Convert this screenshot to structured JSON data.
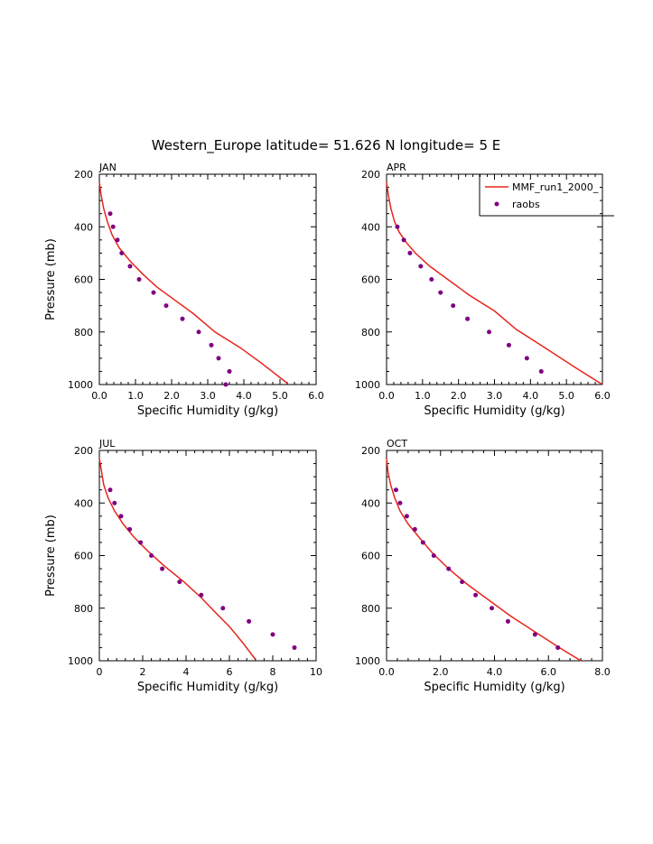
{
  "figure_title": "Western_Europe  latitude= 51.626 N longitude= 5 E",
  "legend": {
    "model_label": "MMF_run1_2000_",
    "obs_label": "raobs"
  },
  "colors": {
    "model": "#e8241c",
    "obs": "#800080",
    "axis": "#000000"
  },
  "chart_data": [
    {
      "type": "line",
      "panel_label": "JAN",
      "xlabel": "Specific Humidity (g/kg)",
      "ylabel": "Pressure (mb)",
      "xlim": [
        0,
        6
      ],
      "ylim": [
        1000,
        200
      ],
      "xticks": [
        "0.0",
        "1.0",
        "2.0",
        "3.0",
        "4.0",
        "5.0",
        "6.0"
      ],
      "yticks": [
        "200",
        "400",
        "600",
        "800",
        "1000"
      ],
      "series": [
        {
          "name": "MMF_run1_2000_",
          "style": "line",
          "x": [
            0.0,
            0.05,
            0.12,
            0.22,
            0.35,
            0.55,
            0.85,
            1.2,
            1.6,
            2.1,
            2.6,
            3.2,
            3.9,
            4.5,
            5.2
          ],
          "y": [
            230,
            280,
            330,
            380,
            430,
            480,
            530,
            580,
            630,
            680,
            730,
            800,
            860,
            920,
            995
          ]
        },
        {
          "name": "raobs",
          "style": "points",
          "x": [
            0.3,
            0.38,
            0.5,
            0.62,
            0.85,
            1.1,
            1.5,
            1.85,
            2.3,
            2.75,
            3.1,
            3.3,
            3.6,
            3.5
          ],
          "y": [
            350,
            400,
            450,
            500,
            550,
            600,
            650,
            700,
            750,
            800,
            850,
            900,
            950,
            1000
          ]
        }
      ]
    },
    {
      "type": "line",
      "panel_label": "APR",
      "xlabel": "Specific Humidity (g/kg)",
      "ylabel": "",
      "xlim": [
        0,
        6
      ],
      "ylim": [
        1000,
        200
      ],
      "xticks": [
        "0.0",
        "1.0",
        "2.0",
        "3.0",
        "4.0",
        "5.0",
        "6.0"
      ],
      "yticks": [
        "200",
        "400",
        "600",
        "800",
        "1000"
      ],
      "show_legend": true,
      "series": [
        {
          "name": "MMF_run1_2000_",
          "style": "line",
          "x": [
            0.0,
            0.05,
            0.12,
            0.22,
            0.35,
            0.55,
            0.8,
            1.2,
            1.7,
            2.3,
            3.0,
            3.6,
            4.4,
            5.3,
            6.0
          ],
          "y": [
            230,
            280,
            330,
            380,
            420,
            460,
            500,
            550,
            600,
            660,
            720,
            790,
            860,
            940,
            1000
          ]
        },
        {
          "name": "raobs",
          "style": "points",
          "x": [
            0.3,
            0.48,
            0.65,
            0.95,
            1.25,
            1.5,
            1.85,
            2.25,
            2.85,
            3.4,
            3.9,
            4.3
          ],
          "y": [
            400,
            450,
            500,
            550,
            600,
            650,
            700,
            750,
            800,
            850,
            900,
            950
          ]
        }
      ]
    },
    {
      "type": "line",
      "panel_label": "JUL",
      "xlabel": "Specific Humidity (g/kg)",
      "ylabel": "Pressure (mb)",
      "xlim": [
        0,
        10
      ],
      "ylim": [
        1000,
        200
      ],
      "xticks": [
        "0",
        "2",
        "4",
        "6",
        "8",
        "10"
      ],
      "yticks": [
        "200",
        "400",
        "600",
        "800",
        "1000"
      ],
      "series": [
        {
          "name": "MMF_run1_2000_",
          "style": "line",
          "x": [
            0.0,
            0.1,
            0.2,
            0.4,
            0.7,
            1.1,
            1.6,
            2.2,
            3.0,
            3.9,
            4.7,
            5.4,
            6.0,
            6.6,
            7.2
          ],
          "y": [
            230,
            280,
            330,
            380,
            430,
            480,
            530,
            580,
            640,
            700,
            760,
            820,
            870,
            930,
            995
          ]
        },
        {
          "name": "raobs",
          "style": "points",
          "x": [
            0.5,
            0.7,
            1.0,
            1.4,
            1.9,
            2.4,
            2.9,
            3.7,
            4.7,
            5.7,
            6.9,
            8.0,
            9.0
          ],
          "y": [
            350,
            400,
            450,
            500,
            550,
            600,
            650,
            700,
            750,
            800,
            850,
            900,
            950
          ]
        }
      ]
    },
    {
      "type": "line",
      "panel_label": "OCT",
      "xlabel": "Specific Humidity (g/kg)",
      "ylabel": "",
      "xlim": [
        0,
        8
      ],
      "ylim": [
        1000,
        200
      ],
      "xticks": [
        "0.0",
        "2.0",
        "4.0",
        "6.0",
        "8.0"
      ],
      "yticks": [
        "200",
        "400",
        "600",
        "800",
        "1000"
      ],
      "series": [
        {
          "name": "MMF_run1_2000_",
          "style": "line",
          "x": [
            0.0,
            0.05,
            0.15,
            0.3,
            0.5,
            0.8,
            1.2,
            1.7,
            2.3,
            3.0,
            3.8,
            4.6,
            5.5,
            6.4,
            7.2
          ],
          "y": [
            230,
            280,
            330,
            380,
            430,
            480,
            530,
            590,
            650,
            710,
            770,
            830,
            890,
            950,
            1000
          ]
        },
        {
          "name": "raobs",
          "style": "points",
          "x": [
            0.35,
            0.5,
            0.75,
            1.05,
            1.35,
            1.75,
            2.3,
            2.8,
            3.3,
            3.9,
            4.5,
            5.5,
            6.35
          ],
          "y": [
            350,
            400,
            450,
            500,
            550,
            600,
            650,
            700,
            750,
            800,
            850,
            900,
            950
          ]
        }
      ]
    }
  ]
}
